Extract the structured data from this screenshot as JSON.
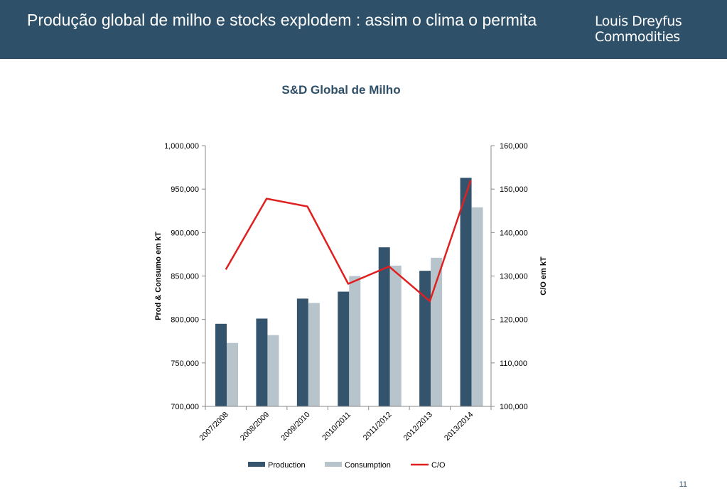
{
  "header": {
    "title": "Produção global de milho e stocks explodem : assim o clima o permita",
    "logo_line1": "Louis Dreyfus",
    "logo_line2": "Commodities"
  },
  "page_number": "11",
  "colors": {
    "header_bg": "#2f5069",
    "production": "#34546e",
    "consumption": "#b8c4cb",
    "co_line": "#e02020",
    "title": "#2f5069"
  },
  "chart_data": {
    "type": "bar",
    "title": "S&D Global de Milho",
    "categories": [
      "2007/2008",
      "2008/2009",
      "2009/2010",
      "2010/2011",
      "2011/2012",
      "2012/2013",
      "2013/2014"
    ],
    "series": [
      {
        "name": "Production",
        "type": "bar",
        "axis": "left",
        "values": [
          795000,
          801000,
          824000,
          832000,
          883000,
          856000,
          963000
        ]
      },
      {
        "name": "Consumption",
        "type": "bar",
        "axis": "left",
        "values": [
          773000,
          782000,
          819000,
          850000,
          862000,
          871000,
          929000
        ]
      },
      {
        "name": "C/O",
        "type": "line",
        "axis": "right",
        "values": [
          131500,
          147800,
          146000,
          128200,
          132200,
          124200,
          152000
        ]
      }
    ],
    "ylabel": "Prod & Consumo em kT",
    "y2label": "C/O em kT",
    "ylim": [
      700000,
      1000000
    ],
    "y2lim": [
      100000,
      160000
    ],
    "yticks": [
      "700,000",
      "750,000",
      "800,000",
      "850,000",
      "900,000",
      "950,000",
      "1,000,000"
    ],
    "y2ticks": [
      "100,000",
      "110,000",
      "120,000",
      "130,000",
      "140,000",
      "150,000",
      "160,000"
    ],
    "grid": false,
    "legend": "bottom"
  }
}
